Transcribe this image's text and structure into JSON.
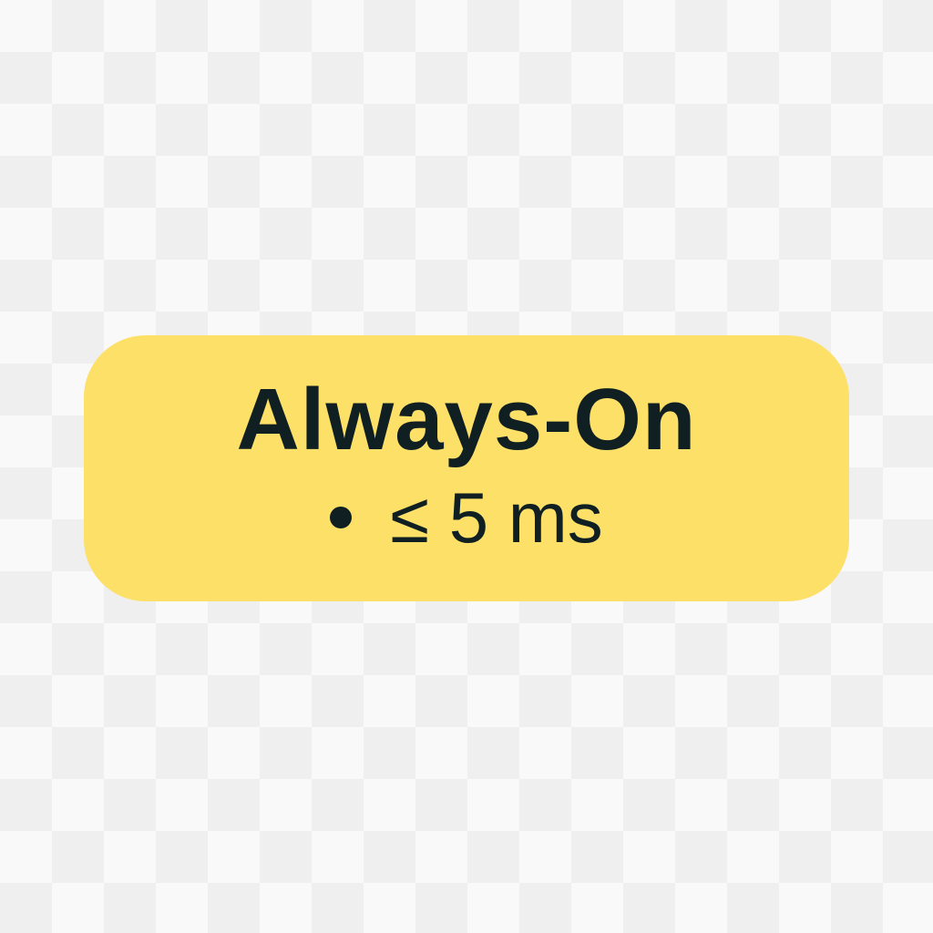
{
  "badge": {
    "title": "Always-On",
    "bullet_icon": "bullet-dot",
    "subtitle": "≤ 5 ms",
    "background_color": "#fde068",
    "text_color": "#0f1f22"
  }
}
